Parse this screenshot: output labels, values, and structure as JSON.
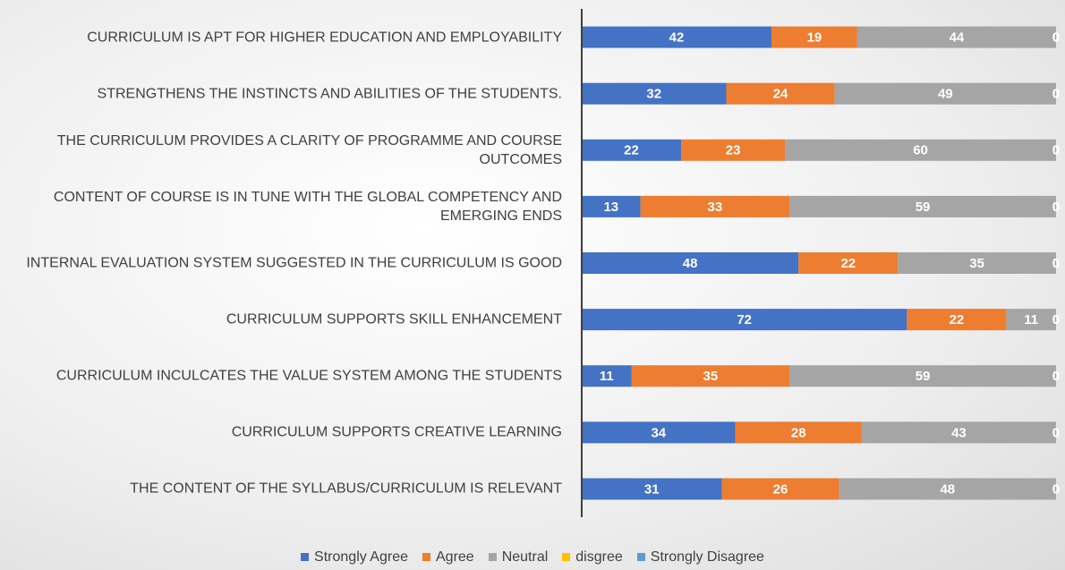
{
  "chart_data": {
    "type": "bar",
    "orientation": "horizontal",
    "stacked": true,
    "categories": [
      "CURRICULUM IS APT FOR HIGHER EDUCATION AND EMPLOYABILITY",
      "STRENGTHENS THE INSTINCTS AND ABILITIES OF THE STUDENTS.",
      "THE CURRICULUM PROVIDES A CLARITY OF PROGRAMME AND COURSE OUTCOMES",
      "CONTENT OF COURSE IS IN TUNE WITH THE GLOBAL COMPETENCY AND EMERGING ENDS",
      "INTERNAL EVALUATION SYSTEM SUGGESTED IN THE CURRICULUM IS GOOD",
      "CURRICULUM SUPPORTS SKILL ENHANCEMENT",
      "CURRICULUM INCULCATES THE VALUE SYSTEM AMONG THE STUDENTS",
      "CURRICULUM SUPPORTS CREATIVE LEARNING",
      "THE CONTENT OF THE SYLLABUS/CURRICULUM IS RELEVANT"
    ],
    "series": [
      {
        "name": "Strongly Agree",
        "color": "#4472c4",
        "values": [
          42,
          32,
          22,
          13,
          48,
          72,
          11,
          34,
          31
        ]
      },
      {
        "name": "Agree",
        "color": "#ed7d31",
        "values": [
          19,
          24,
          23,
          33,
          22,
          22,
          35,
          28,
          26
        ]
      },
      {
        "name": "Neutral",
        "color": "#a5a5a5",
        "values": [
          44,
          49,
          60,
          59,
          35,
          11,
          59,
          43,
          48
        ]
      },
      {
        "name": "disgree",
        "color": "#ffc000",
        "values": [
          0,
          0,
          0,
          0,
          0,
          0,
          0,
          0,
          0
        ]
      },
      {
        "name": "Strongly Disagree",
        "color": "#5b9bd5",
        "values": [
          0,
          0,
          0,
          0,
          0,
          0,
          0,
          0,
          0
        ]
      }
    ],
    "xlim": [
      0,
      106
    ],
    "legend": "bottom",
    "data_labels": true
  }
}
